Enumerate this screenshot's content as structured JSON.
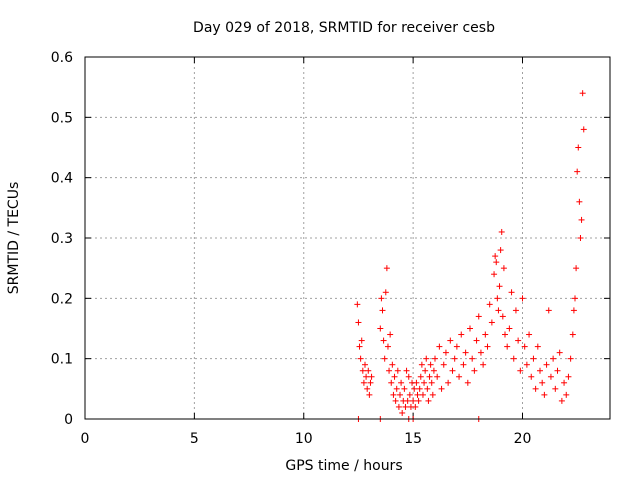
{
  "chart_data": {
    "type": "scatter",
    "title": "Day 029 of 2018, SRMTID for receiver cesb",
    "xlabel": "GPS time / hours",
    "ylabel": "SRMTID / TECUs",
    "xlim": [
      0,
      24
    ],
    "ylim": [
      0,
      0.6
    ],
    "xticks": [
      0,
      5,
      10,
      15,
      20
    ],
    "xtick_labels": [
      "0",
      "5",
      "10",
      "15",
      "20"
    ],
    "yticks": [
      0,
      0.1,
      0.2,
      0.3,
      0.4,
      0.5,
      0.6
    ],
    "ytick_labels": [
      "0",
      "0.1",
      "0.2",
      "0.3",
      "0.4",
      "0.5",
      "0.6"
    ],
    "grid": true,
    "marker": "+",
    "marker_color": "#ff0000",
    "series": [
      {
        "name": "SRMTID",
        "x": [
          12.45,
          12.5,
          12.55,
          12.6,
          12.65,
          12.7,
          12.75,
          12.8,
          12.85,
          12.9,
          12.95,
          13.0,
          13.05,
          13.1,
          13.5,
          13.55,
          13.6,
          13.65,
          13.7,
          13.75,
          13.8,
          13.85,
          13.9,
          13.95,
          14.0,
          14.05,
          14.1,
          14.15,
          14.2,
          14.25,
          14.3,
          14.35,
          14.4,
          14.45,
          14.5,
          14.55,
          14.6,
          14.65,
          14.7,
          14.75,
          14.8,
          14.85,
          14.9,
          14.95,
          15.0,
          15.05,
          15.1,
          15.15,
          15.2,
          15.25,
          15.3,
          15.35,
          15.4,
          15.45,
          15.5,
          15.55,
          15.6,
          15.65,
          15.7,
          15.75,
          15.8,
          15.85,
          15.9,
          15.95,
          16.0,
          16.1,
          16.2,
          16.3,
          16.4,
          16.5,
          16.6,
          16.7,
          16.8,
          16.9,
          17.0,
          17.1,
          17.2,
          17.3,
          17.4,
          17.5,
          17.6,
          17.7,
          17.8,
          17.9,
          18.0,
          18.1,
          18.2,
          18.3,
          18.4,
          18.5,
          18.6,
          18.7,
          18.75,
          18.8,
          18.85,
          18.9,
          18.95,
          19.0,
          19.05,
          19.1,
          19.15,
          19.2,
          19.3,
          19.4,
          19.5,
          19.6,
          19.7,
          19.8,
          19.9,
          20.0,
          20.1,
          20.2,
          20.3,
          20.4,
          20.5,
          20.6,
          20.7,
          20.8,
          20.9,
          21.0,
          21.1,
          21.2,
          21.3,
          21.4,
          21.5,
          21.6,
          21.7,
          21.8,
          21.9,
          22.0,
          22.1,
          22.2,
          22.3,
          22.35,
          22.4,
          22.45,
          22.5,
          22.55,
          22.6,
          22.65,
          22.7,
          22.75,
          22.8,
          12.5,
          13.5,
          14.8,
          15.0,
          18.0
        ],
        "y": [
          0.19,
          0.16,
          0.12,
          0.1,
          0.13,
          0.08,
          0.06,
          0.09,
          0.07,
          0.05,
          0.08,
          0.04,
          0.06,
          0.07,
          0.15,
          0.2,
          0.18,
          0.13,
          0.1,
          0.21,
          0.25,
          0.12,
          0.08,
          0.14,
          0.06,
          0.09,
          0.04,
          0.07,
          0.03,
          0.05,
          0.08,
          0.02,
          0.04,
          0.06,
          0.01,
          0.03,
          0.05,
          0.02,
          0.08,
          0.03,
          0.07,
          0.04,
          0.02,
          0.06,
          0.03,
          0.05,
          0.02,
          0.06,
          0.04,
          0.03,
          0.05,
          0.07,
          0.09,
          0.04,
          0.06,
          0.08,
          0.1,
          0.05,
          0.03,
          0.07,
          0.09,
          0.06,
          0.04,
          0.08,
          0.1,
          0.07,
          0.12,
          0.05,
          0.09,
          0.11,
          0.06,
          0.13,
          0.08,
          0.1,
          0.12,
          0.07,
          0.14,
          0.09,
          0.11,
          0.06,
          0.15,
          0.1,
          0.08,
          0.13,
          0.17,
          0.11,
          0.09,
          0.14,
          0.12,
          0.19,
          0.16,
          0.24,
          0.27,
          0.26,
          0.2,
          0.18,
          0.22,
          0.28,
          0.31,
          0.17,
          0.25,
          0.14,
          0.12,
          0.15,
          0.21,
          0.1,
          0.18,
          0.13,
          0.08,
          0.2,
          0.12,
          0.09,
          0.14,
          0.07,
          0.1,
          0.05,
          0.12,
          0.08,
          0.06,
          0.04,
          0.09,
          0.18,
          0.07,
          0.1,
          0.05,
          0.08,
          0.11,
          0.03,
          0.06,
          0.04,
          0.07,
          0.1,
          0.14,
          0.18,
          0.2,
          0.25,
          0.41,
          0.45,
          0.36,
          0.3,
          0.33,
          0.54,
          0.48,
          0.0,
          0.0,
          0.0,
          0.0,
          0.0
        ]
      }
    ]
  }
}
